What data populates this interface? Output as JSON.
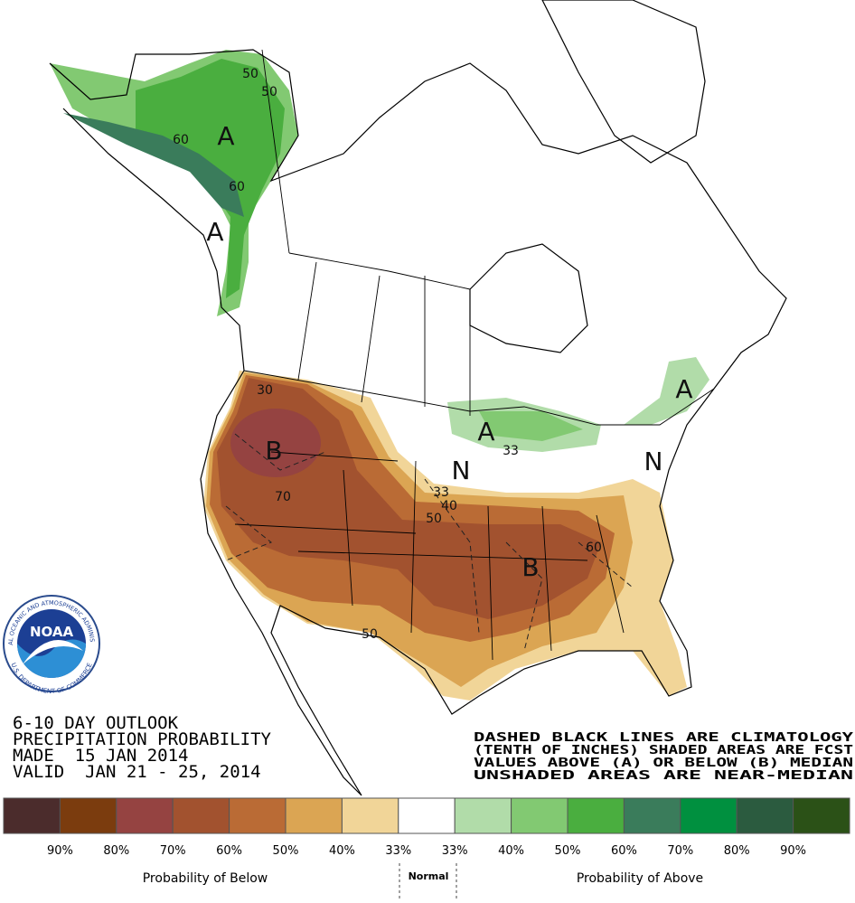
{
  "outlook": {
    "lines": [
      "6-10 DAY OUTLOOK",
      "PRECIPITATION PROBABILITY",
      "MADE  15 JAN 2014",
      "VALID  JAN 21 - 25, 2014"
    ]
  },
  "note": {
    "lines": [
      "DASHED BLACK LINES ARE CLIMATOLOGY",
      "(TENTH OF INCHES) SHADED AREAS ARE FCST",
      "VALUES ABOVE (A) OR BELOW (B) MEDIAN",
      "UNSHADED AREAS ARE NEAR-MEDIAN"
    ]
  },
  "logo": {
    "text": "NOAA",
    "ring_top": "NATIONAL OCEANIC AND ATMOSPHERIC ADMINISTRATION",
    "ring_bottom": "U.S. DEPARTMENT OF COMMERCE"
  },
  "map_labels": [
    "50",
    "50",
    "60",
    "A",
    "60",
    "A",
    "30",
    "B",
    "70",
    "A",
    "33",
    "N",
    "33",
    "40",
    "50",
    "N",
    "60",
    "B",
    "50",
    "A"
  ],
  "legend": {
    "colors": [
      "#4b2c2c",
      "#7b3c0e",
      "#954341",
      "#a2522f",
      "#ba6b35",
      "#dba553",
      "#f1d598",
      "#ffffff",
      "#b1dca9",
      "#82c972",
      "#4aae3f",
      "#3a7c5b",
      "#00903f",
      "#2b5b3f",
      "#2b5117"
    ],
    "labels": [
      "90%",
      "80%",
      "70%",
      "60%",
      "50%",
      "40%",
      "33%",
      "33%",
      "40%",
      "50%",
      "60%",
      "70%",
      "80%",
      "90%"
    ],
    "below": "Probability of Below",
    "normal": "Normal",
    "above": "Probability of Above"
  }
}
